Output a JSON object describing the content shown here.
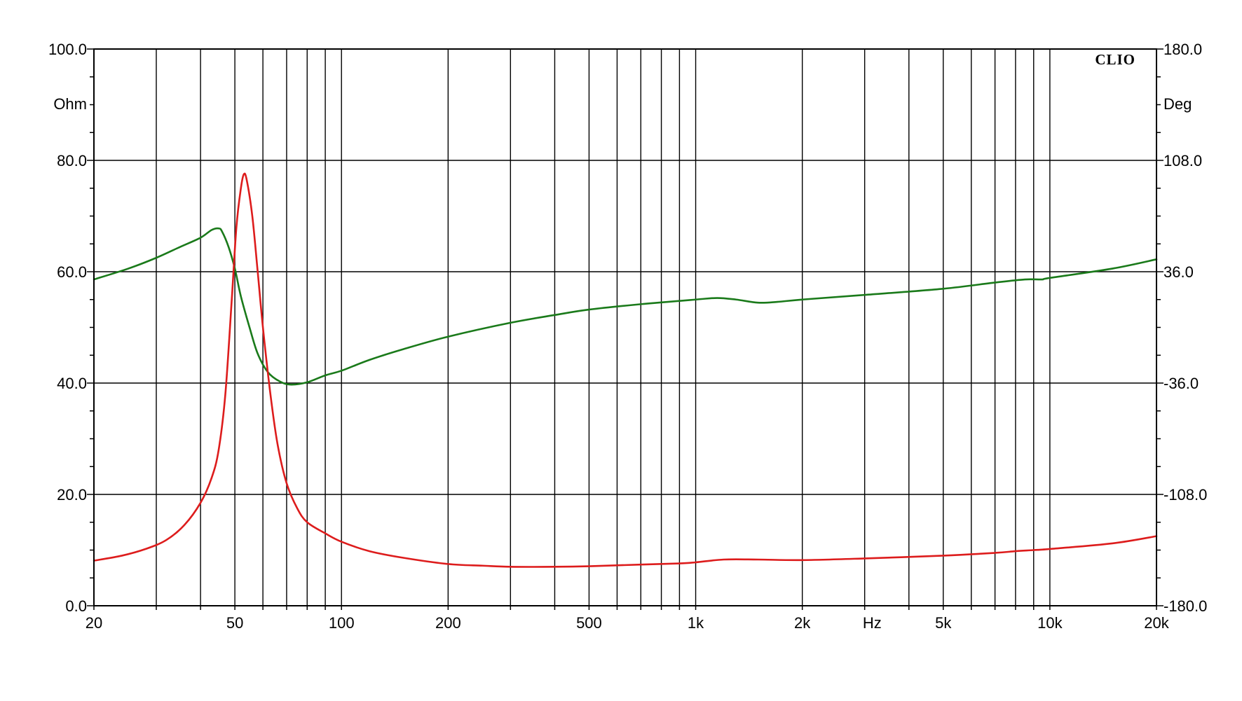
{
  "chart_data": {
    "type": "line",
    "brand": "CLIO",
    "x_unit": "Hz",
    "xscale": "log",
    "xlim": [
      20,
      20000
    ],
    "x_ticks": [
      {
        "value": 20,
        "label": "20"
      },
      {
        "value": 50,
        "label": "50"
      },
      {
        "value": 100,
        "label": "100"
      },
      {
        "value": 200,
        "label": "200"
      },
      {
        "value": 500,
        "label": "500"
      },
      {
        "value": 1000,
        "label": "1k"
      },
      {
        "value": 2000,
        "label": "2k"
      },
      {
        "value": 5000,
        "label": "5k"
      },
      {
        "value": 10000,
        "label": "10k"
      },
      {
        "value": 20000,
        "label": "20k"
      }
    ],
    "x_grid": [
      20,
      30,
      40,
      50,
      60,
      70,
      80,
      90,
      100,
      200,
      300,
      400,
      500,
      600,
      700,
      800,
      900,
      1000,
      2000,
      3000,
      4000,
      5000,
      6000,
      7000,
      8000,
      9000,
      10000,
      20000
    ],
    "y_left": {
      "unit": "Ohm",
      "ylim": [
        0,
        100
      ],
      "ticks": [
        {
          "value": 0,
          "label": "0.0"
        },
        {
          "value": 20,
          "label": "20.0"
        },
        {
          "value": 40,
          "label": "40.0"
        },
        {
          "value": 60,
          "label": "60.0"
        },
        {
          "value": 80,
          "label": "80.0"
        },
        {
          "value": 100,
          "label": "100.0"
        }
      ]
    },
    "y_right": {
      "unit": "Deg",
      "ylim": [
        -180,
        180
      ],
      "ticks": [
        {
          "value": -180,
          "label": "-180.0"
        },
        {
          "value": -108,
          "label": "-108.0"
        },
        {
          "value": -36,
          "label": "-36.0"
        },
        {
          "value": 36,
          "label": "36.0"
        },
        {
          "value": 108,
          "label": "108.0"
        },
        {
          "value": 180,
          "label": "180.0"
        }
      ]
    },
    "grid": true,
    "series": [
      {
        "axis": "left",
        "color": "#dd1c1c",
        "points": [
          [
            20,
            8.1
          ],
          [
            24,
            9.0
          ],
          [
            28,
            10.2
          ],
          [
            32,
            11.8
          ],
          [
            36,
            14.5
          ],
          [
            40,
            18.5
          ],
          [
            43,
            23.0
          ],
          [
            45,
            28.0
          ],
          [
            47,
            38.0
          ],
          [
            49,
            55.0
          ],
          [
            50.5,
            68.0
          ],
          [
            52,
            75.0
          ],
          [
            53,
            77.5
          ],
          [
            54,
            76.5
          ],
          [
            56,
            70.0
          ],
          [
            58,
            60.0
          ],
          [
            60,
            50.0
          ],
          [
            63,
            38.0
          ],
          [
            66,
            29.0
          ],
          [
            70,
            22.0
          ],
          [
            75,
            17.5
          ],
          [
            80,
            15.0
          ],
          [
            90,
            13.0
          ],
          [
            100,
            11.5
          ],
          [
            120,
            9.8
          ],
          [
            150,
            8.6
          ],
          [
            200,
            7.5
          ],
          [
            250,
            7.2
          ],
          [
            300,
            7.0
          ],
          [
            400,
            7.0
          ],
          [
            500,
            7.1
          ],
          [
            700,
            7.4
          ],
          [
            900,
            7.6
          ],
          [
            1000,
            7.8
          ],
          [
            1200,
            8.3
          ],
          [
            1500,
            8.3
          ],
          [
            2000,
            8.2
          ],
          [
            3000,
            8.5
          ],
          [
            5000,
            9.0
          ],
          [
            7000,
            9.5
          ],
          [
            8000,
            9.8
          ],
          [
            9000,
            10.0
          ],
          [
            10000,
            10.2
          ],
          [
            15000,
            11.2
          ],
          [
            20000,
            12.5
          ]
        ]
      },
      {
        "axis": "right",
        "color": "#1a7a1a",
        "points": [
          [
            20,
            31
          ],
          [
            25,
            38
          ],
          [
            30,
            45
          ],
          [
            35,
            52
          ],
          [
            40,
            58
          ],
          [
            43,
            63
          ],
          [
            45,
            64
          ],
          [
            46,
            62
          ],
          [
            48,
            52
          ],
          [
            50,
            38
          ],
          [
            52,
            20
          ],
          [
            55,
            0
          ],
          [
            58,
            -17
          ],
          [
            62,
            -29
          ],
          [
            67,
            -35
          ],
          [
            72,
            -37
          ],
          [
            80,
            -35.5
          ],
          [
            90,
            -31
          ],
          [
            100,
            -28
          ],
          [
            120,
            -21
          ],
          [
            150,
            -14
          ],
          [
            200,
            -6
          ],
          [
            300,
            3
          ],
          [
            400,
            8
          ],
          [
            500,
            11.5
          ],
          [
            700,
            15
          ],
          [
            1000,
            18
          ],
          [
            1150,
            19
          ],
          [
            1300,
            18
          ],
          [
            1500,
            16
          ],
          [
            1700,
            16.5
          ],
          [
            2000,
            18
          ],
          [
            3000,
            21
          ],
          [
            5000,
            25
          ],
          [
            7000,
            29
          ],
          [
            8500,
            31
          ],
          [
            9500,
            31
          ],
          [
            10000,
            32
          ],
          [
            15000,
            38
          ],
          [
            20000,
            44
          ]
        ]
      }
    ]
  }
}
